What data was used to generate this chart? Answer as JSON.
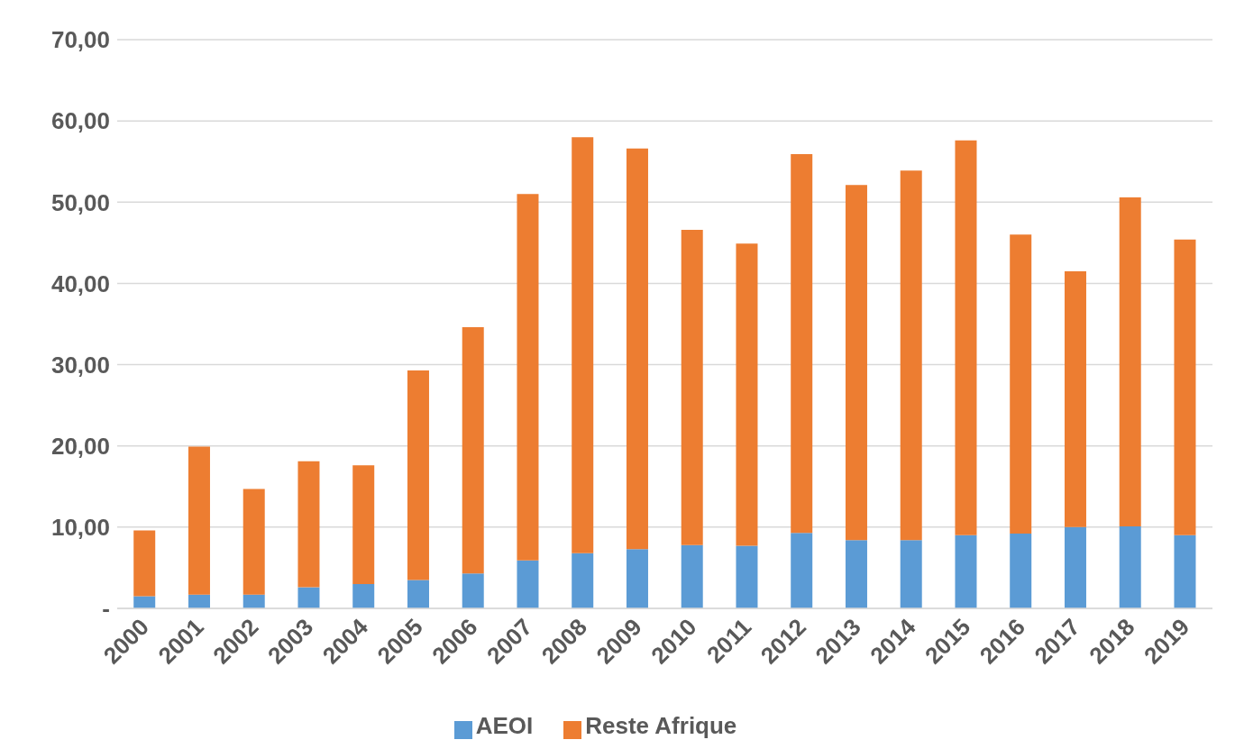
{
  "chart_data": {
    "type": "bar",
    "stacked": true,
    "categories": [
      "2000",
      "2001",
      "2002",
      "2003",
      "2004",
      "2005",
      "2006",
      "2007",
      "2008",
      "2009",
      "2010",
      "2011",
      "2012",
      "2013",
      "2014",
      "2015",
      "2016",
      "2017",
      "2018",
      "2019"
    ],
    "series": [
      {
        "name": "AEOI",
        "color": "#5b9bd5",
        "values": [
          1.5,
          1.7,
          1.7,
          2.6,
          3.0,
          3.5,
          4.3,
          5.9,
          6.8,
          7.3,
          7.8,
          7.7,
          9.3,
          8.4,
          8.4,
          9.0,
          9.2,
          10.0,
          10.1,
          9.0
        ]
      },
      {
        "name": "Reste Afrique",
        "color": "#ed7d31",
        "values": [
          8.1,
          18.2,
          13.0,
          15.5,
          14.6,
          25.8,
          30.3,
          45.1,
          51.2,
          49.3,
          38.8,
          37.2,
          46.6,
          43.7,
          45.5,
          48.6,
          36.8,
          31.5,
          40.5,
          36.4
        ]
      }
    ],
    "ylim": [
      0,
      70
    ],
    "yticks": [
      {
        "value": 0,
        "label": "-"
      },
      {
        "value": 10,
        "label": "10,00"
      },
      {
        "value": 20,
        "label": "20,00"
      },
      {
        "value": 30,
        "label": "30,00"
      },
      {
        "value": 40,
        "label": "40,00"
      },
      {
        "value": 50,
        "label": "50,00"
      },
      {
        "value": 60,
        "label": "60,00"
      },
      {
        "value": 70,
        "label": "70,00"
      }
    ],
    "grid": "y",
    "legend": "bottom"
  }
}
